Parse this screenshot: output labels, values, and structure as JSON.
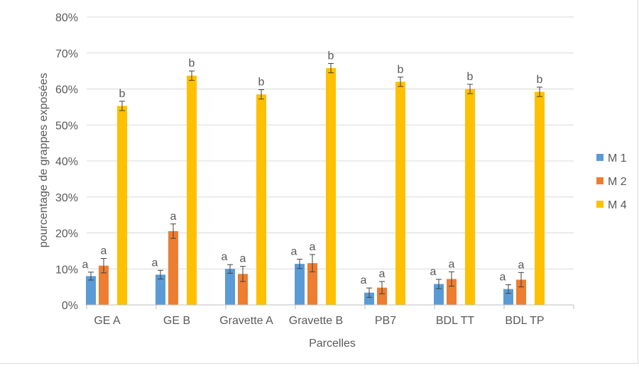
{
  "chart_data": {
    "type": "bar",
    "xlabel": "Parcelles",
    "ylabel": "pourcentage de grappes exposées",
    "ylim": [
      0,
      80
    ],
    "ytick_values": [
      0,
      10,
      20,
      30,
      40,
      50,
      60,
      70,
      80
    ],
    "ytick_labels": [
      "0%",
      "10%",
      "20%",
      "30%",
      "40%",
      "50%",
      "60%",
      "70%",
      "80%"
    ],
    "categories": [
      "GE A",
      "GE B",
      "Gravette A",
      "Gravette B",
      "PB7",
      "BDL TT",
      "BDL TP"
    ],
    "series": [
      {
        "name": "M 1",
        "color": "#5b9bd5",
        "values": [
          8.0,
          8.4,
          10.0,
          11.4,
          3.4,
          5.8,
          4.4
        ],
        "errors": [
          1.1,
          1.2,
          1.2,
          1.3,
          1.3,
          1.3,
          1.2
        ],
        "labels": [
          "a",
          "a",
          "a",
          "a",
          "a",
          "a",
          "a"
        ]
      },
      {
        "name": "M 2",
        "color": "#ed7d31",
        "values": [
          10.9,
          20.5,
          8.6,
          11.6,
          4.8,
          7.2,
          7.0
        ],
        "errors": [
          2.0,
          2.0,
          2.1,
          2.4,
          1.7,
          2.0,
          2.0
        ],
        "labels": [
          "a",
          "a",
          "a",
          "a",
          "a",
          "a",
          "a"
        ]
      },
      {
        "name": "M 4",
        "color": "#ffc000",
        "values": [
          55.3,
          63.7,
          58.5,
          65.8,
          62.0,
          60.0,
          59.2
        ],
        "errors": [
          1.3,
          1.3,
          1.3,
          1.3,
          1.3,
          1.3,
          1.3
        ],
        "labels": [
          "b",
          "b",
          "b",
          "b",
          "b",
          "b",
          "b"
        ]
      }
    ],
    "legend": {
      "position": "right",
      "entries": [
        "M 1",
        "M 2",
        "M 4"
      ]
    },
    "grid": true
  }
}
